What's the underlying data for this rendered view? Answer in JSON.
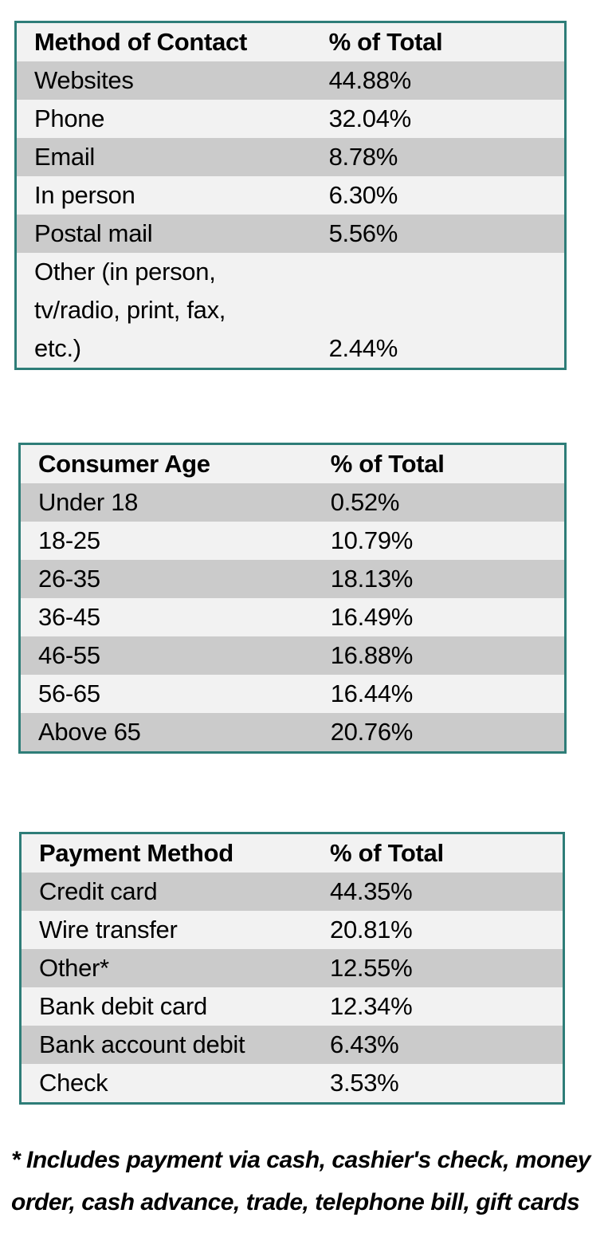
{
  "colors": {
    "table_border": "#2e7d78",
    "header_row_bg": "#f2f2f2",
    "row_light": "#f2f2f2",
    "row_dark": "#cbcbcb",
    "text": "#000000",
    "bottom_strip": "#f2f2f2",
    "page_background": "#ffffff"
  },
  "tables": [
    {
      "name": "method-of-contact",
      "headers": [
        "Method of Contact",
        "% of Total"
      ],
      "rows": [
        {
          "label": "Websites",
          "value": "44.88%"
        },
        {
          "label": "Phone",
          "value": "32.04%"
        },
        {
          "label": "Email",
          "value": "8.78%"
        },
        {
          "label": "In person",
          "value": "6.30%"
        },
        {
          "label": "Postal mail",
          "value": "5.56%"
        },
        {
          "label": "Other (in person, tv/radio, print, fax, etc.)",
          "value": "2.44%",
          "multiline": true
        }
      ]
    },
    {
      "name": "consumer-age",
      "headers": [
        "Consumer Age",
        "% of Total"
      ],
      "rows": [
        {
          "label": "Under 18",
          "value": "0.52%"
        },
        {
          "label": "18-25",
          "value": "10.79%"
        },
        {
          "label": "26-35",
          "value": "18.13%"
        },
        {
          "label": "36-45",
          "value": "16.49%"
        },
        {
          "label": "46-55",
          "value": "16.88%"
        },
        {
          "label": "56-65",
          "value": "16.44%"
        },
        {
          "label": "Above 65",
          "value": "20.76%"
        }
      ]
    },
    {
      "name": "payment-method",
      "headers": [
        "Payment Method",
        "% of Total"
      ],
      "rows": [
        {
          "label": "Credit card",
          "value": "44.35%"
        },
        {
          "label": "Wire transfer",
          "value": "20.81%"
        },
        {
          "label": "Other*",
          "value": "12.55%"
        },
        {
          "label": "Bank debit card",
          "value": "12.34%"
        },
        {
          "label": "Bank account debit",
          "value": "6.43%"
        },
        {
          "label": "Check",
          "value": "3.53%"
        }
      ]
    }
  ],
  "footnote": {
    "lines": [
      "* Includes payment via cash, cashier's check, money",
      "order, cash advance, trade, telephone bill, gift cards"
    ]
  }
}
